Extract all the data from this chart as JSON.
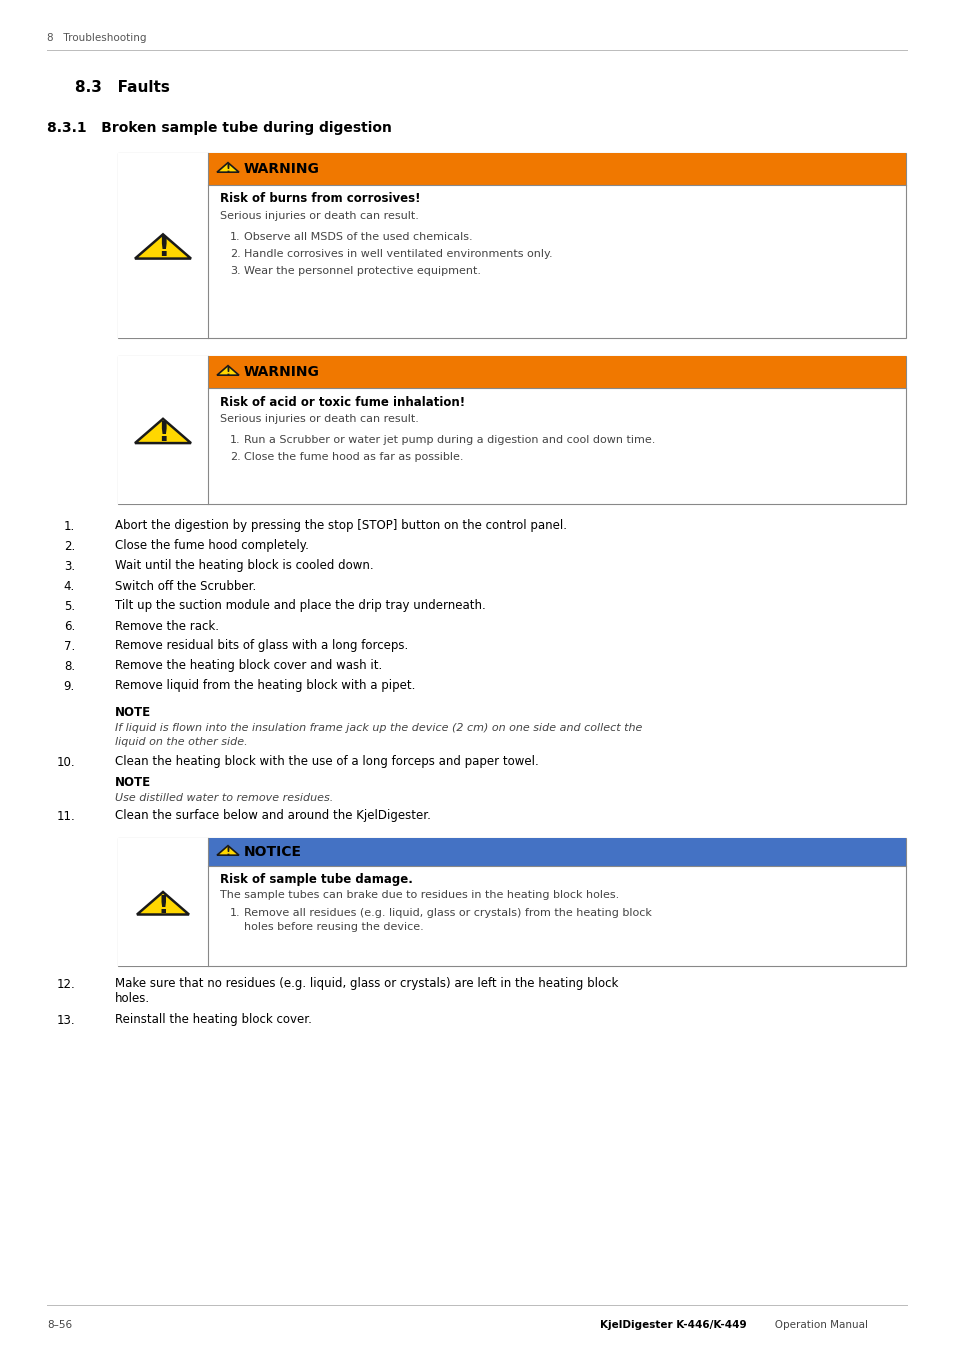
{
  "page_header": "8   Troubleshooting",
  "section_title": "8.3   Faults",
  "subsection_title": "8.3.1   Broken sample tube during digestion",
  "warning1": {
    "header": "WARNING",
    "header_bg": "#F07800",
    "bold_text": "Risk of burns from corrosives!",
    "subtitle": "Serious injuries or death can result.",
    "items": [
      "Observe all MSDS of the used chemicals.",
      "Handle corrosives in well ventilated environments only.",
      "Wear the personnel protective equipment."
    ]
  },
  "warning2": {
    "header": "WARNING",
    "header_bg": "#F07800",
    "bold_text": "Risk of acid or toxic fume inhalation!",
    "subtitle": "Serious injuries or death can result.",
    "items": [
      "Run a Scrubber or water jet pump during a digestion and cool down time.",
      "Close the fume hood as far as possible."
    ]
  },
  "steps": [
    "Abort the digestion by pressing the stop [STOP] button on the control panel.",
    "Close the fume hood completely.",
    "Wait until the heating block is cooled down.",
    "Switch off the Scrubber.",
    "Tilt up the suction module and place the drip tray underneath.",
    "Remove the rack.",
    "Remove residual bits of glass with a long forceps.",
    "Remove the heating block cover and wash it.",
    "Remove liquid from the heating block with a pipet."
  ],
  "note1_label": "NOTE",
  "note1_text": "If liquid is flown into the insulation frame jack up the device (2 cm) on one side and collect the\nliquid on the other side.",
  "step10_text": "Clean the heating block with the use of a long forceps and paper towel.",
  "note2_label": "NOTE",
  "note2_text": "Use distilled water to remove residues.",
  "step11_text": "Clean the surface below and around the KjelDigester.",
  "notice": {
    "header": "NOTICE",
    "header_bg": "#4472C4",
    "bold_text": "Risk of sample tube damage.",
    "subtitle": "The sample tubes can brake due to residues in the heating block holes.",
    "items": [
      "Remove all residues (e.g. liquid, glass or crystals) from the heating block\nholes before reusing the device."
    ]
  },
  "step12_text": "Make sure that no residues (e.g. liquid, glass or crystals) are left in the heating block\nholes.",
  "step13_text": "Reinstall the heating block cover.",
  "footer_left": "8–56",
  "footer_right_bold": "KjelDigester K-446/K-449",
  "footer_right_normal": "Operation Manual",
  "bg_color": "#FFFFFF",
  "text_color": "#000000",
  "gray_text": "#555555",
  "border_color": "#888888",
  "line_color": "#AAAAAA",
  "orange": "#F07800",
  "blue": "#4472C4"
}
